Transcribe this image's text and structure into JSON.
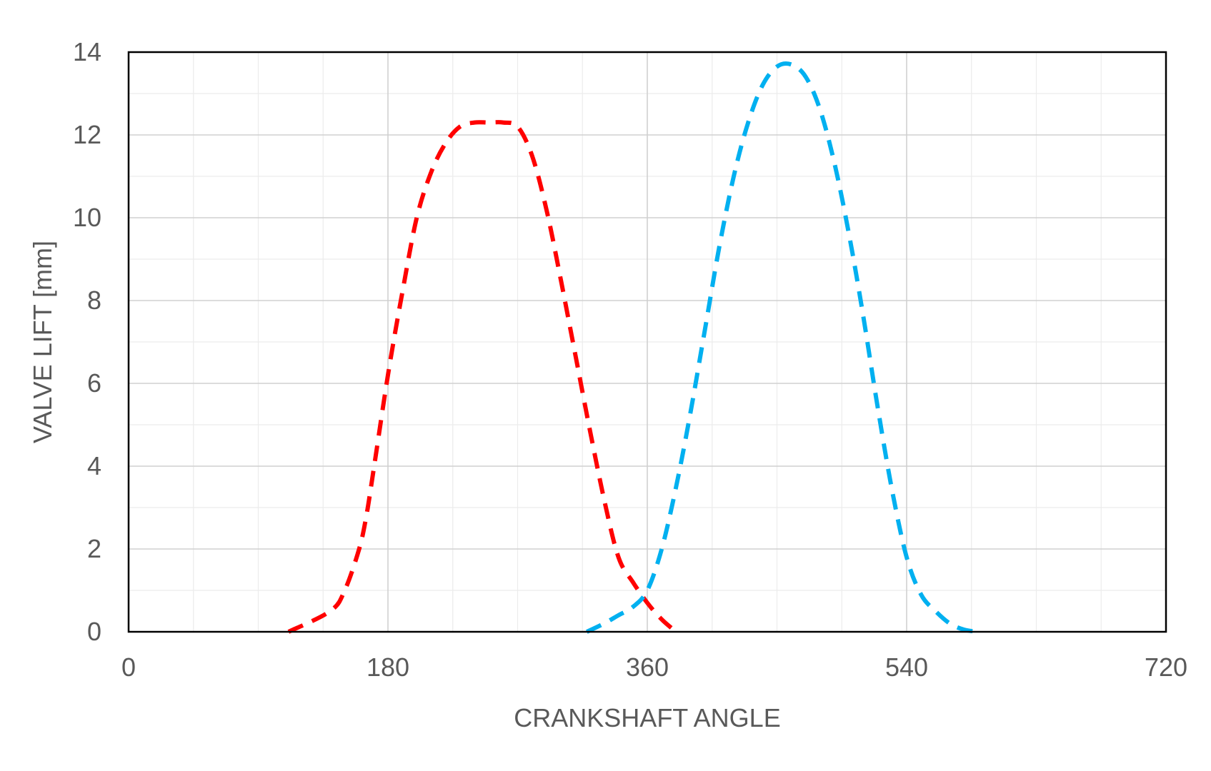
{
  "chart_data": {
    "type": "line",
    "title": "",
    "xlabel": "CRANKSHAFT ANGLE",
    "ylabel": "VALVE LIFT  [mm]",
    "xlim": [
      0,
      720
    ],
    "ylim": [
      0,
      14
    ],
    "x_ticks": [
      0,
      180,
      360,
      540,
      720
    ],
    "y_ticks": [
      0,
      2,
      4,
      6,
      8,
      10,
      12,
      14
    ],
    "x_minor_step": 45,
    "y_minor_step": 1,
    "grid": true,
    "legend": "none",
    "series": [
      {
        "color": "#ff0000",
        "style": "dashed",
        "x": [
          111,
          140,
          150,
          160,
          165,
          170,
          180,
          190,
          200,
          210,
          220,
          230,
          240,
          250,
          260,
          270,
          280,
          290,
          300,
          310,
          320,
          330,
          340,
          350,
          360,
          370,
          380
        ],
        "y": [
          0,
          0.5,
          1.0,
          2.0,
          2.8,
          3.9,
          6.2,
          8.2,
          10.0,
          11.1,
          11.8,
          12.2,
          12.3,
          12.3,
          12.3,
          12.2,
          11.5,
          10.2,
          8.5,
          6.7,
          4.9,
          3.2,
          1.8,
          1.2,
          0.7,
          0.3,
          0
        ]
      },
      {
        "color": "#00b0f0",
        "style": "dashed",
        "x": [
          318,
          330,
          340,
          350,
          360,
          370,
          380,
          390,
          400,
          410,
          420,
          430,
          440,
          450,
          460,
          470,
          480,
          490,
          500,
          510,
          520,
          530,
          540,
          550,
          560,
          570,
          580,
          590
        ],
        "y": [
          0,
          0.2,
          0.4,
          0.6,
          1.0,
          2.0,
          3.5,
          5.3,
          7.3,
          9.3,
          11.0,
          12.3,
          13.2,
          13.65,
          13.7,
          13.4,
          12.6,
          11.3,
          9.6,
          7.6,
          5.4,
          3.4,
          1.8,
          0.9,
          0.5,
          0.2,
          0.05,
          0
        ]
      }
    ]
  }
}
